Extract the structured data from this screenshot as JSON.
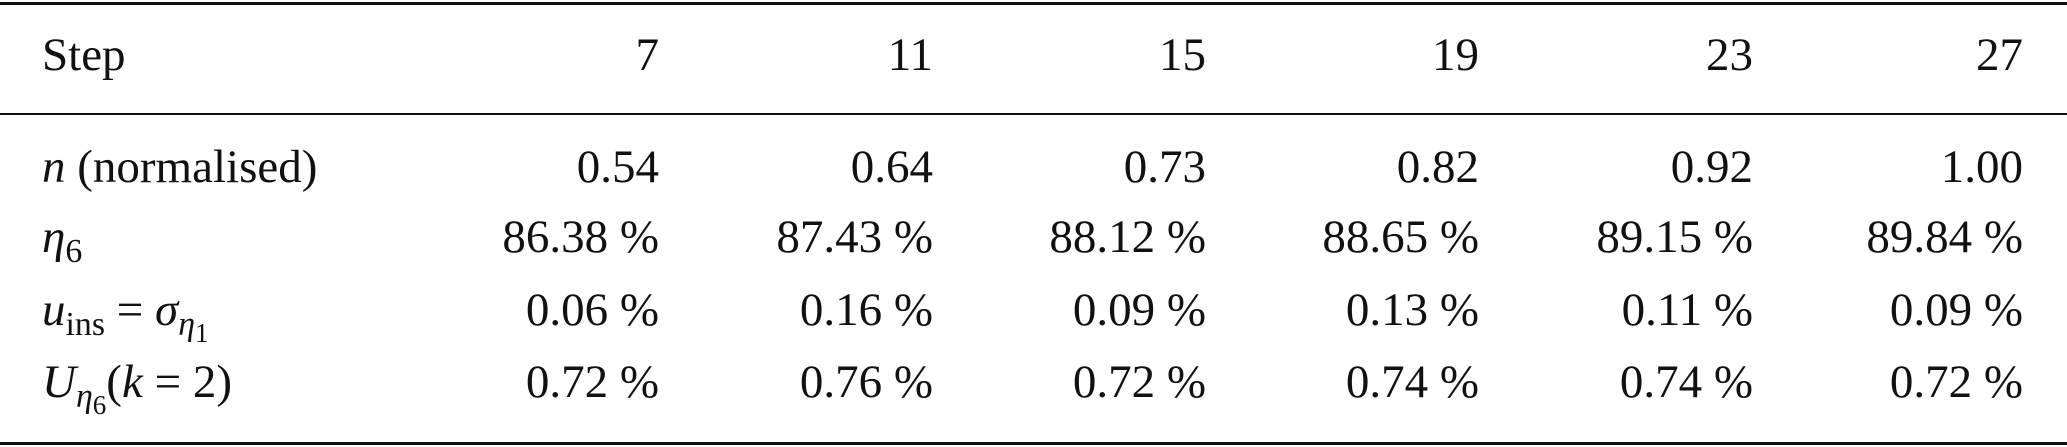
{
  "table": {
    "header": [
      "Step",
      "7",
      "11",
      "15",
      "19",
      "23",
      "27"
    ],
    "rows": [
      {
        "label": [
          "n",
          "(normalised)"
        ],
        "cells": [
          "0.54",
          "0.64",
          "0.73",
          "0.82",
          "0.92",
          "1.00"
        ]
      },
      {
        "label": [
          "η",
          "6"
        ],
        "cells": [
          "86.38 %",
          "87.43 %",
          "88.12 %",
          "88.65 %",
          "89.15 %",
          "89.84 %"
        ]
      },
      {
        "label": [
          "u",
          "ins",
          "=",
          "σ",
          "η",
          "1"
        ],
        "cells": [
          "0.06 %",
          "0.16 %",
          "0.09 %",
          "0.13 %",
          "0.11 %",
          "0.09 %"
        ]
      },
      {
        "label": [
          "U",
          "η",
          "6",
          "(",
          "k",
          "= 2)"
        ],
        "cells": [
          "0.72 %",
          "0.76 %",
          "0.72 %",
          "0.74 %",
          "0.74 %",
          "0.72 %"
        ]
      }
    ]
  }
}
